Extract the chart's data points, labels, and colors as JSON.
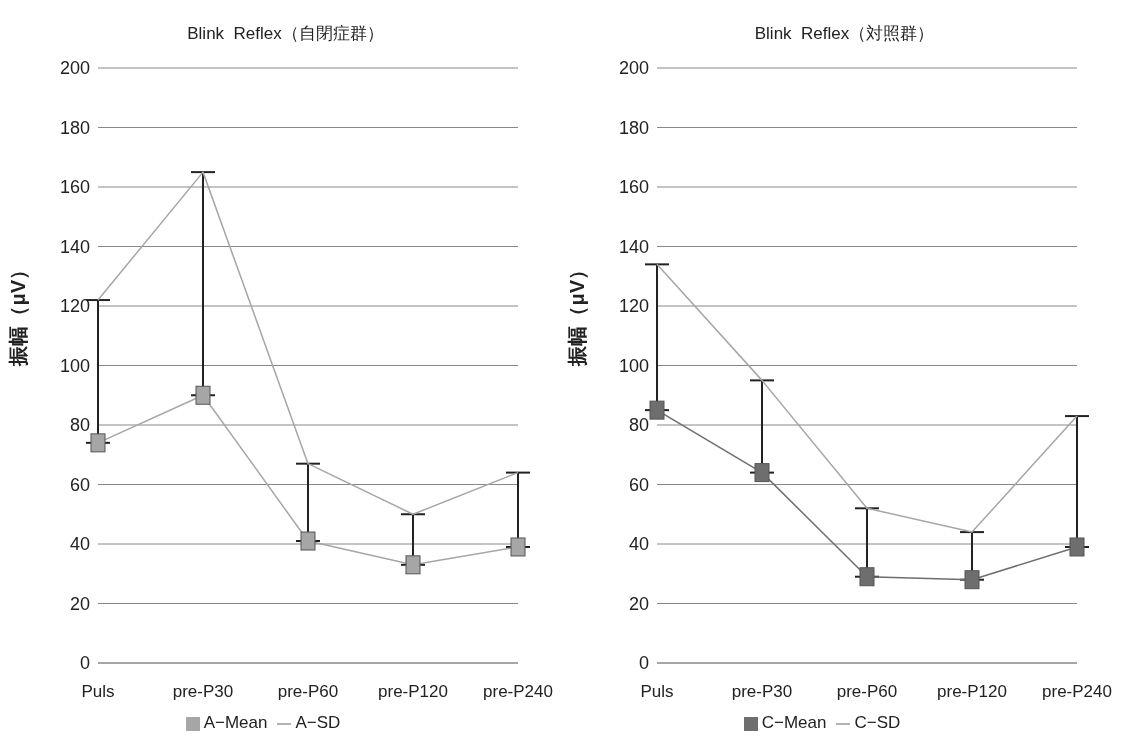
{
  "chart_data": [
    {
      "type": "line",
      "title": "Blink  Reflex（自閉症群）",
      "ylabel": "振幅（μV）",
      "categories": [
        "Puls",
        "pre-P30",
        "pre-P60",
        "pre-P120",
        "pre-P240"
      ],
      "ylim": [
        0,
        200
      ],
      "yticks": [
        0,
        20,
        40,
        60,
        80,
        100,
        120,
        140,
        160,
        180,
        200
      ],
      "grid": "y",
      "legend": "bottom",
      "series": [
        {
          "name": "A−Mean",
          "color": "#a6a6a6",
          "marker": "square",
          "values": [
            74,
            90,
            41,
            33,
            39
          ],
          "errors": [
            [
              74,
              122
            ],
            [
              90,
              165
            ],
            [
              41,
              67
            ],
            [
              33,
              50
            ],
            [
              39,
              64
            ]
          ]
        },
        {
          "name": "A−SD",
          "color": "#a6a6a6",
          "marker": "none",
          "values": [
            122,
            165,
            67,
            50,
            64
          ]
        }
      ]
    },
    {
      "type": "line",
      "title": "Blink  Reflex（対照群）",
      "ylabel": "振幅（μV）",
      "categories": [
        "Puls",
        "pre-P30",
        "pre-P60",
        "pre-P120",
        "pre-P240"
      ],
      "ylim": [
        0,
        200
      ],
      "yticks": [
        0,
        20,
        40,
        60,
        80,
        100,
        120,
        140,
        160,
        180,
        200
      ],
      "grid": "y",
      "legend": "bottom",
      "series": [
        {
          "name": "C−Mean",
          "color": "#6e6e6e",
          "marker": "square",
          "values": [
            85,
            64,
            29,
            28,
            39
          ],
          "errors": [
            [
              85,
              134
            ],
            [
              64,
              95
            ],
            [
              29,
              52
            ],
            [
              28,
              44
            ],
            [
              39,
              83
            ]
          ]
        },
        {
          "name": "C−SD",
          "color": "#a6a6a6",
          "marker": "none",
          "values": [
            134,
            95,
            52,
            44,
            83
          ]
        }
      ]
    }
  ]
}
